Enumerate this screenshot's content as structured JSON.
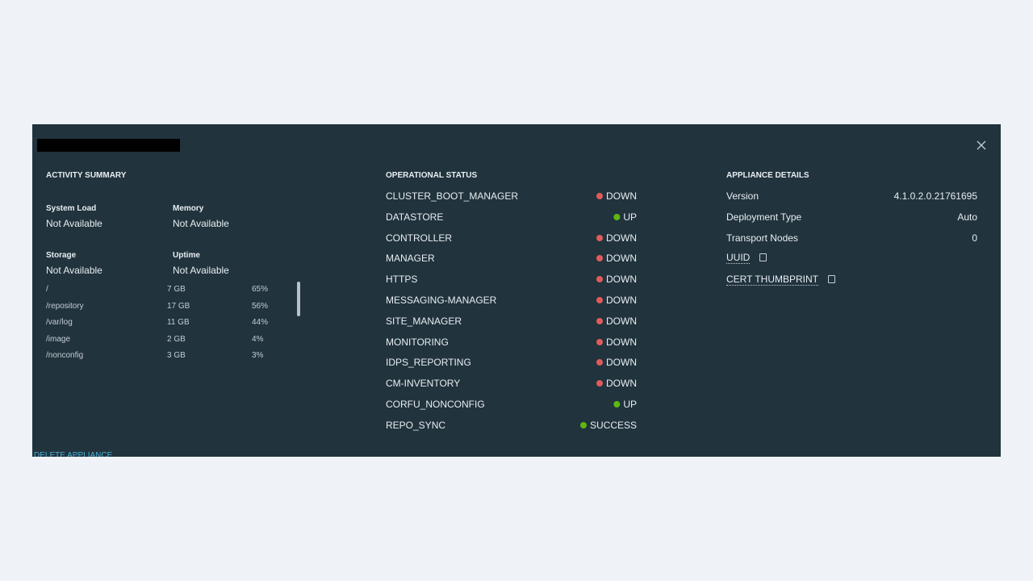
{
  "activity_summary": {
    "title": "ACTIVITY SUMMARY",
    "stats": [
      {
        "label": "System Load",
        "value": "Not Available"
      },
      {
        "label": "Memory",
        "value": "Not Available"
      },
      {
        "label": "Storage",
        "value": "Not Available"
      },
      {
        "label": "Uptime",
        "value": "Not Available"
      }
    ],
    "storage": [
      [
        "/",
        "7 GB",
        "65%"
      ],
      [
        "/repository",
        "17 GB",
        "56%"
      ],
      [
        "/var/log",
        "11 GB",
        "44%"
      ],
      [
        "/image",
        "2 GB",
        "4%"
      ],
      [
        "/nonconfig",
        "3 GB",
        "3%"
      ]
    ]
  },
  "operational_status": {
    "title": "OPERATIONAL STATUS",
    "items": [
      {
        "name": "CLUSTER_BOOT_MANAGER",
        "status": "DOWN",
        "color": "#e05b5b"
      },
      {
        "name": "DATASTORE",
        "status": "UP",
        "color": "#5eb715"
      },
      {
        "name": "CONTROLLER",
        "status": "DOWN",
        "color": "#e05b5b"
      },
      {
        "name": "MANAGER",
        "status": "DOWN",
        "color": "#e05b5b"
      },
      {
        "name": "HTTPS",
        "status": "DOWN",
        "color": "#e05b5b"
      },
      {
        "name": "MESSAGING-MANAGER",
        "status": "DOWN",
        "color": "#e05b5b"
      },
      {
        "name": "SITE_MANAGER",
        "status": "DOWN",
        "color": "#e05b5b"
      },
      {
        "name": "MONITORING",
        "status": "DOWN",
        "color": "#e05b5b"
      },
      {
        "name": "IDPS_REPORTING",
        "status": "DOWN",
        "color": "#e05b5b"
      },
      {
        "name": "CM-INVENTORY",
        "status": "DOWN",
        "color": "#e05b5b"
      },
      {
        "name": "CORFU_NONCONFIG",
        "status": "UP",
        "color": "#5eb715"
      },
      {
        "name": "REPO_SYNC",
        "status": "SUCCESS",
        "color": "#5eb715"
      }
    ]
  },
  "appliance_details": {
    "title": "APPLIANCE DETAILS",
    "items": [
      {
        "label": "Version",
        "value": "4.1.0.2.0.21761695"
      },
      {
        "label": "Deployment Type",
        "value": "Auto"
      },
      {
        "label": "Transport Nodes",
        "value": "0"
      }
    ],
    "links": [
      "UUID",
      "CERT THUMBPRINT"
    ]
  },
  "footer": {
    "action": "DELETE APPLIANCE"
  }
}
